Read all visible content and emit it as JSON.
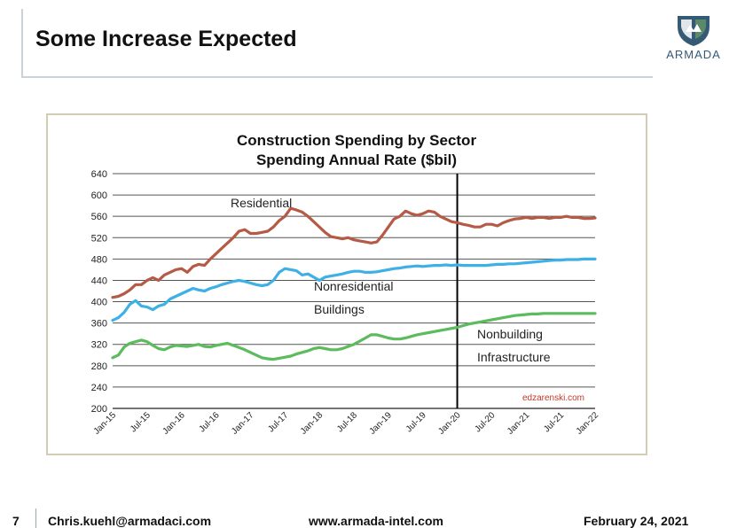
{
  "slide": {
    "title": "Some Increase Expected",
    "logo_text": "ARMADA",
    "footer": {
      "page": "7",
      "email": "Chris.kuehl@armadaci.com",
      "website": "www.armada-intel.com",
      "date": "February 24, 2021"
    }
  },
  "colors": {
    "residential": "#b55a45",
    "nonresidential": "#3fb0e6",
    "nonbuilding": "#5cbb5c",
    "logo": "#355a76"
  },
  "chart_data": {
    "type": "line",
    "title": "Construction Spending by Sector",
    "subtitle": "Spending Annual Rate ($bil)",
    "ylim": [
      200,
      640
    ],
    "yticks": [
      200,
      240,
      280,
      320,
      360,
      400,
      440,
      480,
      520,
      560,
      600,
      640
    ],
    "xticks": [
      "Jan-15",
      "Jul-15",
      "Jan-16",
      "Jul-16",
      "Jan-17",
      "Jul-17",
      "Jan-18",
      "Jul-18",
      "Jan-19",
      "Jul-19",
      "Jan-20",
      "Jul-20",
      "Jan-21",
      "Jul-21",
      "Jan-22"
    ],
    "grid": true,
    "vline_at": "Jan-20",
    "watermark": "edzarenski.com",
    "series": [
      {
        "name": "Residential",
        "label_lines": [
          "Residential"
        ],
        "color_key": "residential",
        "points": [
          [
            0,
            408
          ],
          [
            1,
            410
          ],
          [
            2,
            415
          ],
          [
            3,
            422
          ],
          [
            4,
            432
          ],
          [
            5,
            432
          ],
          [
            6,
            440
          ],
          [
            7,
            445
          ],
          [
            8,
            440
          ],
          [
            9,
            450
          ],
          [
            10,
            455
          ],
          [
            11,
            460
          ],
          [
            12,
            462
          ],
          [
            13,
            455
          ],
          [
            14,
            466
          ],
          [
            15,
            470
          ],
          [
            16,
            468
          ],
          [
            17,
            480
          ],
          [
            18,
            490
          ],
          [
            19,
            500
          ],
          [
            20,
            510
          ],
          [
            21,
            520
          ],
          [
            22,
            532
          ],
          [
            23,
            535
          ],
          [
            24,
            528
          ],
          [
            25,
            528
          ],
          [
            26,
            530
          ],
          [
            27,
            532
          ],
          [
            28,
            540
          ],
          [
            29,
            552
          ],
          [
            30,
            560
          ],
          [
            31,
            575
          ],
          [
            32,
            572
          ],
          [
            33,
            568
          ],
          [
            34,
            560
          ],
          [
            35,
            550
          ],
          [
            36,
            540
          ],
          [
            37,
            530
          ],
          [
            38,
            522
          ],
          [
            39,
            520
          ],
          [
            40,
            518
          ],
          [
            41,
            520
          ],
          [
            42,
            516
          ],
          [
            43,
            514
          ],
          [
            44,
            512
          ],
          [
            45,
            510
          ],
          [
            46,
            512
          ],
          [
            47,
            525
          ],
          [
            48,
            540
          ],
          [
            49,
            555
          ],
          [
            50,
            560
          ],
          [
            51,
            570
          ],
          [
            52,
            565
          ],
          [
            53,
            562
          ],
          [
            54,
            565
          ],
          [
            55,
            570
          ],
          [
            56,
            568
          ],
          [
            57,
            560
          ],
          [
            58,
            555
          ],
          [
            59,
            550
          ],
          [
            60,
            548
          ],
          [
            61,
            545
          ],
          [
            62,
            543
          ],
          [
            63,
            540
          ],
          [
            64,
            540
          ],
          [
            65,
            545
          ],
          [
            66,
            545
          ],
          [
            67,
            542
          ],
          [
            68,
            548
          ],
          [
            69,
            552
          ],
          [
            70,
            555
          ],
          [
            71,
            556
          ],
          [
            72,
            558
          ],
          [
            73,
            556
          ],
          [
            74,
            558
          ],
          [
            75,
            558
          ],
          [
            76,
            556
          ],
          [
            77,
            558
          ],
          [
            78,
            558
          ],
          [
            79,
            560
          ],
          [
            80,
            558
          ],
          [
            81,
            558
          ],
          [
            82,
            556
          ],
          [
            83,
            556
          ],
          [
            84,
            557
          ]
        ]
      },
      {
        "name": "Nonresidential Buildings",
        "label_lines": [
          "Nonresidential",
          "Buildings"
        ],
        "color_key": "nonresidential",
        "points": [
          [
            0,
            365
          ],
          [
            1,
            370
          ],
          [
            2,
            380
          ],
          [
            3,
            395
          ],
          [
            4,
            402
          ],
          [
            5,
            392
          ],
          [
            6,
            390
          ],
          [
            7,
            385
          ],
          [
            8,
            392
          ],
          [
            9,
            395
          ],
          [
            10,
            405
          ],
          [
            11,
            410
          ],
          [
            12,
            415
          ],
          [
            13,
            420
          ],
          [
            14,
            425
          ],
          [
            15,
            422
          ],
          [
            16,
            420
          ],
          [
            17,
            425
          ],
          [
            18,
            428
          ],
          [
            19,
            432
          ],
          [
            20,
            435
          ],
          [
            21,
            438
          ],
          [
            22,
            440
          ],
          [
            23,
            438
          ],
          [
            24,
            435
          ],
          [
            25,
            432
          ],
          [
            26,
            430
          ],
          [
            27,
            432
          ],
          [
            28,
            440
          ],
          [
            29,
            455
          ],
          [
            30,
            462
          ],
          [
            31,
            460
          ],
          [
            32,
            458
          ],
          [
            33,
            450
          ],
          [
            34,
            452
          ],
          [
            35,
            446
          ],
          [
            36,
            440
          ],
          [
            37,
            446
          ],
          [
            38,
            448
          ],
          [
            39,
            450
          ],
          [
            40,
            452
          ],
          [
            41,
            455
          ],
          [
            42,
            457
          ],
          [
            43,
            457
          ],
          [
            44,
            455
          ],
          [
            45,
            455
          ],
          [
            46,
            456
          ],
          [
            47,
            458
          ],
          [
            48,
            460
          ],
          [
            49,
            462
          ],
          [
            50,
            463
          ],
          [
            51,
            465
          ],
          [
            52,
            466
          ],
          [
            53,
            467
          ],
          [
            54,
            466
          ],
          [
            55,
            467
          ],
          [
            56,
            468
          ],
          [
            57,
            468
          ],
          [
            58,
            469
          ],
          [
            59,
            468
          ],
          [
            60,
            469
          ],
          [
            61,
            468
          ],
          [
            62,
            468
          ],
          [
            63,
            468
          ],
          [
            64,
            468
          ],
          [
            65,
            468
          ],
          [
            66,
            469
          ],
          [
            67,
            470
          ],
          [
            68,
            470
          ],
          [
            69,
            471
          ],
          [
            70,
            471
          ],
          [
            71,
            472
          ],
          [
            72,
            473
          ],
          [
            73,
            474
          ],
          [
            74,
            475
          ],
          [
            75,
            476
          ],
          [
            76,
            477
          ],
          [
            77,
            478
          ],
          [
            78,
            478
          ],
          [
            79,
            479
          ],
          [
            80,
            479
          ],
          [
            81,
            479
          ],
          [
            82,
            480
          ],
          [
            83,
            480
          ],
          [
            84,
            480
          ]
        ]
      },
      {
        "name": "Nonbuilding Infrastructure",
        "label_lines": [
          "Nonbuilding",
          "Infrastructure"
        ],
        "color_key": "nonbuilding",
        "points": [
          [
            0,
            295
          ],
          [
            1,
            300
          ],
          [
            2,
            315
          ],
          [
            3,
            322
          ],
          [
            4,
            325
          ],
          [
            5,
            328
          ],
          [
            6,
            325
          ],
          [
            7,
            318
          ],
          [
            8,
            312
          ],
          [
            9,
            310
          ],
          [
            10,
            315
          ],
          [
            11,
            318
          ],
          [
            12,
            317
          ],
          [
            13,
            316
          ],
          [
            14,
            318
          ],
          [
            15,
            320
          ],
          [
            16,
            316
          ],
          [
            17,
            315
          ],
          [
            18,
            318
          ],
          [
            19,
            320
          ],
          [
            20,
            322
          ],
          [
            21,
            318
          ],
          [
            22,
            314
          ],
          [
            23,
            310
          ],
          [
            24,
            305
          ],
          [
            25,
            300
          ],
          [
            26,
            295
          ],
          [
            27,
            293
          ],
          [
            28,
            292
          ],
          [
            29,
            294
          ],
          [
            30,
            296
          ],
          [
            31,
            298
          ],
          [
            32,
            302
          ],
          [
            33,
            305
          ],
          [
            34,
            308
          ],
          [
            35,
            312
          ],
          [
            36,
            314
          ],
          [
            37,
            312
          ],
          [
            38,
            310
          ],
          [
            39,
            310
          ],
          [
            40,
            312
          ],
          [
            41,
            316
          ],
          [
            42,
            320
          ],
          [
            43,
            326
          ],
          [
            44,
            332
          ],
          [
            45,
            338
          ],
          [
            46,
            338
          ],
          [
            47,
            335
          ],
          [
            48,
            332
          ],
          [
            49,
            330
          ],
          [
            50,
            330
          ],
          [
            51,
            332
          ],
          [
            52,
            335
          ],
          [
            53,
            338
          ],
          [
            54,
            340
          ],
          [
            55,
            342
          ],
          [
            56,
            344
          ],
          [
            57,
            346
          ],
          [
            58,
            348
          ],
          [
            59,
            350
          ],
          [
            60,
            352
          ],
          [
            61,
            355
          ],
          [
            62,
            358
          ],
          [
            63,
            360
          ],
          [
            64,
            362
          ],
          [
            65,
            364
          ],
          [
            66,
            366
          ],
          [
            67,
            368
          ],
          [
            68,
            370
          ],
          [
            69,
            372
          ],
          [
            70,
            374
          ],
          [
            71,
            375
          ],
          [
            72,
            376
          ],
          [
            73,
            377
          ],
          [
            74,
            377
          ],
          [
            75,
            378
          ],
          [
            76,
            378
          ],
          [
            77,
            378
          ],
          [
            78,
            378
          ],
          [
            79,
            378
          ],
          [
            80,
            378
          ],
          [
            81,
            378
          ],
          [
            82,
            378
          ],
          [
            83,
            378
          ],
          [
            84,
            378
          ]
        ]
      }
    ]
  }
}
